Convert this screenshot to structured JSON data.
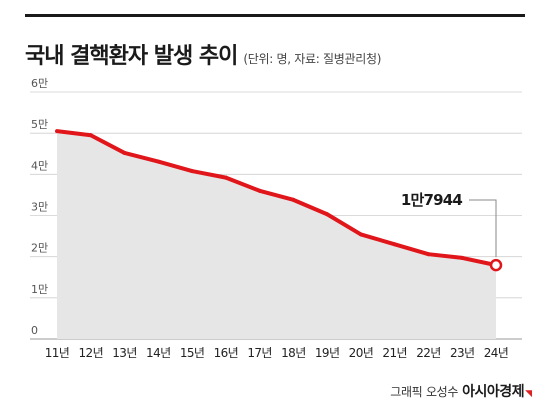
{
  "header": {
    "title": "국내 결핵환자 발생 추이",
    "subtitle": "(단위: 명, 자료: 질병관리청)"
  },
  "footer": {
    "credit": "그래픽 오성수",
    "brand": "아시아경제"
  },
  "chart_data": {
    "type": "area",
    "categories": [
      "11년",
      "12년",
      "13년",
      "14년",
      "15년",
      "16년",
      "17년",
      "18년",
      "19년",
      "20년",
      "21년",
      "22년",
      "23년",
      "24년"
    ],
    "values": [
      50500,
      49500,
      45200,
      43100,
      40800,
      39200,
      36000,
      33800,
      30300,
      25400,
      23000,
      20600,
      19700,
      17944
    ],
    "yticks": [
      {
        "value": 0,
        "label": "0"
      },
      {
        "value": 10000,
        "label": "1만"
      },
      {
        "value": 20000,
        "label": "2만"
      },
      {
        "value": 30000,
        "label": "3만"
      },
      {
        "value": 40000,
        "label": "4만"
      },
      {
        "value": 50000,
        "label": "5만"
      },
      {
        "value": 60000,
        "label": "6만"
      }
    ],
    "ylim": [
      0,
      60000
    ],
    "annotation": {
      "label": "1만7944",
      "index": 13
    },
    "grid": true,
    "colors": {
      "line": "#e0161b",
      "area": "#e6e6e6",
      "grid": "#cfcfcf"
    }
  }
}
